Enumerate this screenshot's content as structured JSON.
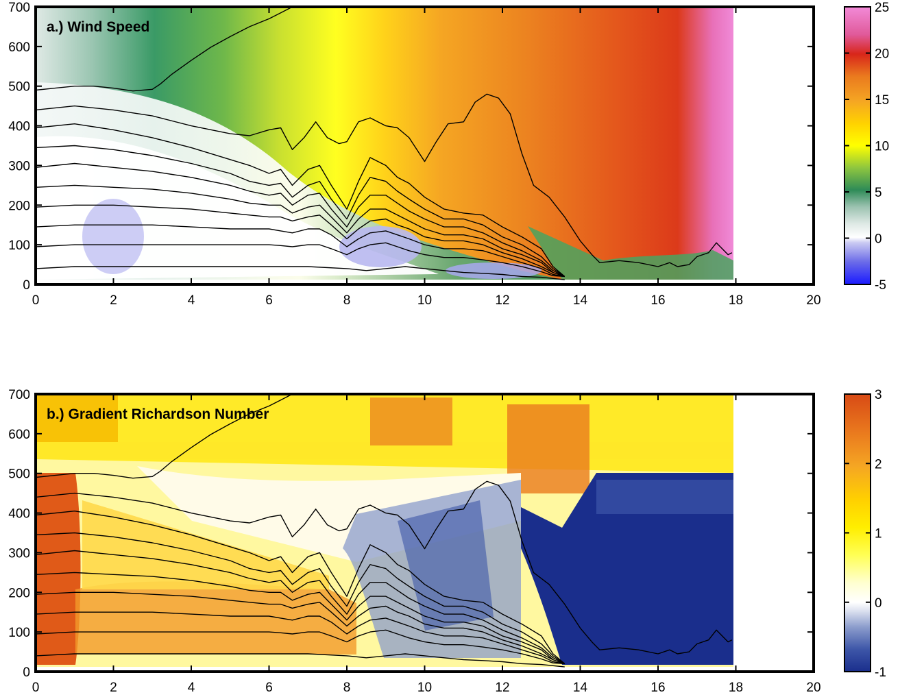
{
  "chart_data": [
    {
      "type": "heatmap",
      "title": "a.) Wind Speed",
      "xlabel": "",
      "ylabel": "",
      "xlim": [
        0,
        20
      ],
      "ylim": [
        0,
        700
      ],
      "x_ticks": [
        0,
        2,
        4,
        6,
        8,
        10,
        12,
        14,
        16,
        18,
        20
      ],
      "y_ticks": [
        0,
        100,
        200,
        300,
        400,
        500,
        600,
        700
      ],
      "colorbar": {
        "range": [
          -5,
          25
        ],
        "ticks": [
          -5,
          0,
          5,
          10,
          15,
          20,
          25
        ],
        "colors": [
          "#1a1aff",
          "#7a7aee",
          "#c9c9f2",
          "#ffffff",
          "#dde8e4",
          "#9bc2b0",
          "#2e8b57",
          "#8ec63f",
          "#d4e820",
          "#ffff00",
          "#ffd700",
          "#f5a623",
          "#ea7a1e",
          "#e04a1a",
          "#d8261a",
          "#e05a9a",
          "#f28ad8"
        ]
      },
      "data_extent_x": [
        0,
        17.9
      ],
      "data_extent_y": [
        10,
        700
      ],
      "contour_isentropes": [
        {
          "x": [
            0,
            0.5,
            1,
            1.5,
            2,
            2.5,
            3,
            3.2,
            3.5,
            4,
            4.5,
            5,
            5.5,
            6,
            6.3,
            6.6,
            6.8
          ],
          "y": [
            490,
            495,
            500,
            500,
            495,
            488,
            492,
            505,
            530,
            565,
            598,
            625,
            650,
            670,
            685,
            700,
            700
          ]
        },
        {
          "x": [
            0,
            1,
            2,
            3,
            4,
            5,
            5.5,
            6,
            6.3,
            6.6,
            6.9,
            7.2,
            7.5,
            7.8,
            8,
            8.3,
            8.6,
            9,
            9.3,
            9.6,
            10,
            10.3,
            10.6,
            11,
            11.3,
            11.6,
            11.9,
            12.2,
            12.5,
            12.8,
            13.2,
            13.6,
            14,
            14.3,
            14.5,
            15,
            15.5,
            16,
            16.3,
            16.5,
            16.8,
            17,
            17.3,
            17.5,
            17.8,
            17.9
          ],
          "y": [
            440,
            450,
            440,
            425,
            400,
            380,
            375,
            390,
            395,
            340,
            370,
            410,
            370,
            355,
            360,
            410,
            420,
            400,
            395,
            370,
            310,
            360,
            405,
            410,
            460,
            480,
            470,
            430,
            330,
            250,
            220,
            170,
            110,
            75,
            55,
            60,
            55,
            45,
            55,
            45,
            50,
            70,
            80,
            105,
            75,
            80
          ]
        },
        {
          "x": [
            0,
            1,
            2,
            3,
            4,
            5,
            5.5,
            6,
            6.3,
            6.6,
            7,
            7.3,
            7.6,
            8,
            8.3,
            8.6,
            9,
            9.3,
            9.6,
            10,
            10.5,
            11,
            11.5,
            12,
            12.5,
            13,
            13.3,
            13.6
          ],
          "y": [
            395,
            405,
            390,
            370,
            345,
            315,
            300,
            280,
            290,
            250,
            290,
            300,
            250,
            190,
            260,
            320,
            300,
            270,
            255,
            220,
            190,
            180,
            175,
            145,
            120,
            90,
            45,
            20
          ]
        },
        {
          "x": [
            0,
            1,
            2,
            3,
            4,
            5,
            5.5,
            6,
            6.3,
            6.6,
            7,
            7.3,
            7.6,
            8,
            8.3,
            8.6,
            9,
            9.3,
            9.6,
            10,
            10.5,
            11,
            11.5,
            12,
            12.5,
            13,
            13.3,
            13.6
          ],
          "y": [
            345,
            350,
            340,
            325,
            305,
            280,
            260,
            250,
            255,
            220,
            250,
            260,
            215,
            165,
            225,
            270,
            260,
            235,
            215,
            190,
            165,
            165,
            150,
            120,
            100,
            70,
            40,
            20
          ]
        },
        {
          "x": [
            0,
            1,
            2,
            3,
            4,
            5,
            5.5,
            6,
            6.3,
            6.6,
            7,
            7.3,
            7.6,
            8,
            8.3,
            8.6,
            9,
            9.3,
            9.6,
            10,
            10.5,
            11,
            11.5,
            12,
            12.5,
            13,
            13.3,
            13.6
          ],
          "y": [
            295,
            305,
            295,
            285,
            270,
            250,
            235,
            225,
            230,
            200,
            225,
            230,
            190,
            145,
            195,
            225,
            225,
            205,
            185,
            165,
            145,
            145,
            130,
            105,
            85,
            60,
            35,
            20
          ]
        },
        {
          "x": [
            0,
            1,
            2,
            3,
            4,
            5,
            5.5,
            6,
            6.3,
            6.6,
            7,
            7.3,
            7.6,
            8,
            8.3,
            8.6,
            9,
            9.3,
            9.6,
            10,
            10.5,
            11,
            11.5,
            12,
            12.5,
            13,
            13.3,
            13.6
          ],
          "y": [
            245,
            250,
            245,
            240,
            230,
            215,
            205,
            200,
            200,
            180,
            195,
            200,
            170,
            130,
            165,
            190,
            190,
            175,
            160,
            140,
            125,
            125,
            115,
            90,
            75,
            55,
            30,
            20
          ]
        },
        {
          "x": [
            0,
            1,
            2,
            3,
            4,
            5,
            5.5,
            6,
            6.3,
            6.6,
            7,
            7.3,
            7.6,
            8,
            8.3,
            8.6,
            9,
            9.3,
            9.6,
            10,
            10.5,
            11,
            11.5,
            12,
            12.5,
            13,
            13.3,
            13.6
          ],
          "y": [
            195,
            200,
            200,
            195,
            190,
            180,
            175,
            170,
            170,
            160,
            170,
            175,
            150,
            115,
            140,
            160,
            165,
            150,
            140,
            120,
            110,
            110,
            100,
            80,
            65,
            45,
            30,
            20
          ]
        },
        {
          "x": [
            0,
            1,
            2,
            3,
            4,
            5,
            5.5,
            6,
            6.3,
            6.6,
            7,
            7.3,
            7.6,
            8,
            8.3,
            8.6,
            9,
            9.3,
            9.6,
            10,
            10.5,
            11,
            11.5,
            12,
            12.5,
            13,
            13.3,
            13.6
          ],
          "y": [
            145,
            150,
            150,
            150,
            145,
            140,
            140,
            140,
            135,
            130,
            140,
            140,
            125,
            95,
            115,
            130,
            135,
            125,
            115,
            100,
            90,
            90,
            85,
            70,
            55,
            40,
            25,
            20
          ]
        },
        {
          "x": [
            0,
            1,
            2,
            3,
            4,
            5,
            5.5,
            6,
            6.3,
            6.6,
            7,
            7.3,
            7.6,
            8,
            8.3,
            8.6,
            9,
            9.3,
            9.6,
            10,
            10.5,
            11,
            11.5,
            12,
            12.5,
            13,
            13.3,
            13.6
          ],
          "y": [
            95,
            100,
            100,
            100,
            100,
            100,
            100,
            100,
            98,
            95,
            100,
            100,
            90,
            75,
            90,
            100,
            105,
            95,
            85,
            75,
            68,
            68,
            62,
            55,
            45,
            32,
            22,
            20
          ]
        },
        {
          "x": [
            0,
            1,
            2,
            3,
            4,
            5,
            6,
            7,
            8,
            8.5,
            9,
            9.5,
            10,
            10.5,
            11,
            11.5,
            12,
            12.5,
            13,
            13.3,
            13.6
          ],
          "y": [
            40,
            45,
            45,
            45,
            45,
            45,
            45,
            45,
            40,
            35,
            40,
            45,
            40,
            35,
            30,
            28,
            25,
            20,
            18,
            15,
            12
          ]
        }
      ]
    },
    {
      "type": "heatmap",
      "title": "b.) Gradient Richardson Number",
      "xlabel": "",
      "ylabel": "",
      "xlim": [
        0,
        20
      ],
      "ylim": [
        0,
        700
      ],
      "x_ticks": [
        0,
        2,
        4,
        6,
        8,
        10,
        12,
        14,
        16,
        18,
        20
      ],
      "y_ticks": [
        0,
        100,
        200,
        300,
        400,
        500,
        600,
        700
      ],
      "colorbar": {
        "range": [
          -1,
          3
        ],
        "ticks": [
          -1,
          0,
          1,
          2,
          3
        ],
        "colors": [
          "#1a2e8c",
          "#3d56a8",
          "#8b9ccc",
          "#c8d0e8",
          "#ffffff",
          "#ffffe0",
          "#ffff66",
          "#ffee00",
          "#ffd000",
          "#f5a623",
          "#ea7a1e",
          "#d84a15"
        ]
      },
      "data_extent_x": [
        0,
        17.9
      ],
      "data_extent_y": [
        10,
        700
      ]
    }
  ]
}
